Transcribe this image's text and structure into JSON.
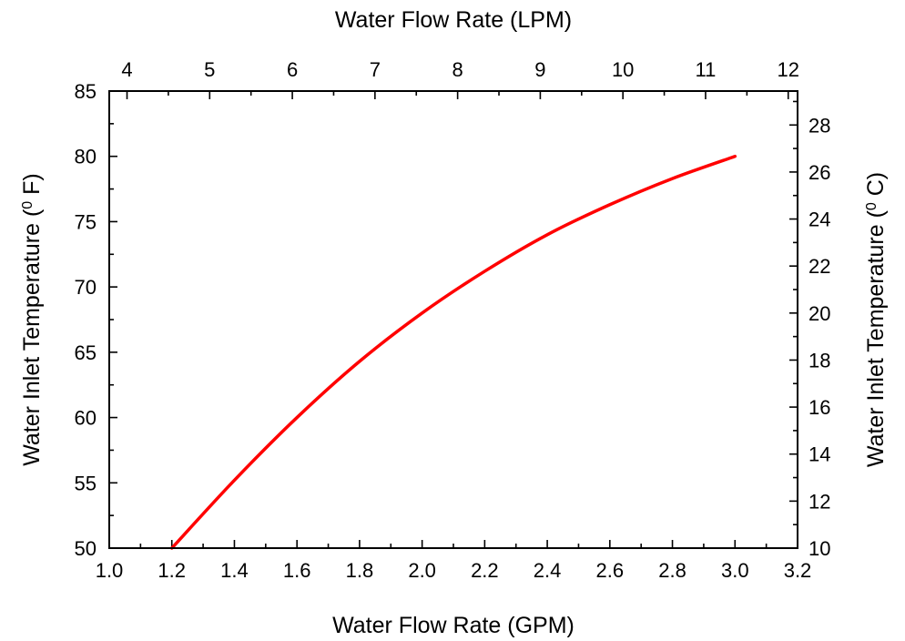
{
  "chart_data": {
    "type": "line",
    "title": "",
    "xlabel": "Water Flow Rate (GPM)",
    "x2label": "Water Flow Rate (LPM)",
    "ylabel": "Water Inlet Temperature (",
    "ylabel_sup": "0",
    "ylabel_unit": " F)",
    "y2label": "Water Inlet Temperature (",
    "y2label_sup": "0",
    "y2label_unit": " C)",
    "xlim": [
      1.0,
      3.2
    ],
    "ylim": [
      50,
      85
    ],
    "x2lim": [
      3.785,
      12.113
    ],
    "y2lim": [
      10,
      29.444
    ],
    "grid": false,
    "line_color": "#ff0000",
    "x_ticks": [
      "1.0",
      "1.2",
      "1.4",
      "1.6",
      "1.8",
      "2.0",
      "2.2",
      "2.4",
      "2.6",
      "2.8",
      "3.0",
      "3.2"
    ],
    "y_ticks": [
      "50",
      "55",
      "60",
      "65",
      "70",
      "75",
      "80",
      "85"
    ],
    "x2_ticks": [
      "4",
      "5",
      "6",
      "7",
      "8",
      "9",
      "10",
      "11",
      "12"
    ],
    "y2_ticks": [
      "10",
      "12",
      "14",
      "16",
      "18",
      "20",
      "22",
      "24",
      "26",
      "28"
    ],
    "series": [
      {
        "x": [
          1.2,
          1.4,
          1.6,
          1.8,
          2.0,
          2.2,
          2.4,
          2.6,
          2.8,
          3.0
        ],
        "y": [
          50.0,
          55.2,
          60.0,
          64.3,
          68.0,
          71.2,
          74.0,
          76.3,
          78.3,
          80.0
        ]
      }
    ]
  }
}
